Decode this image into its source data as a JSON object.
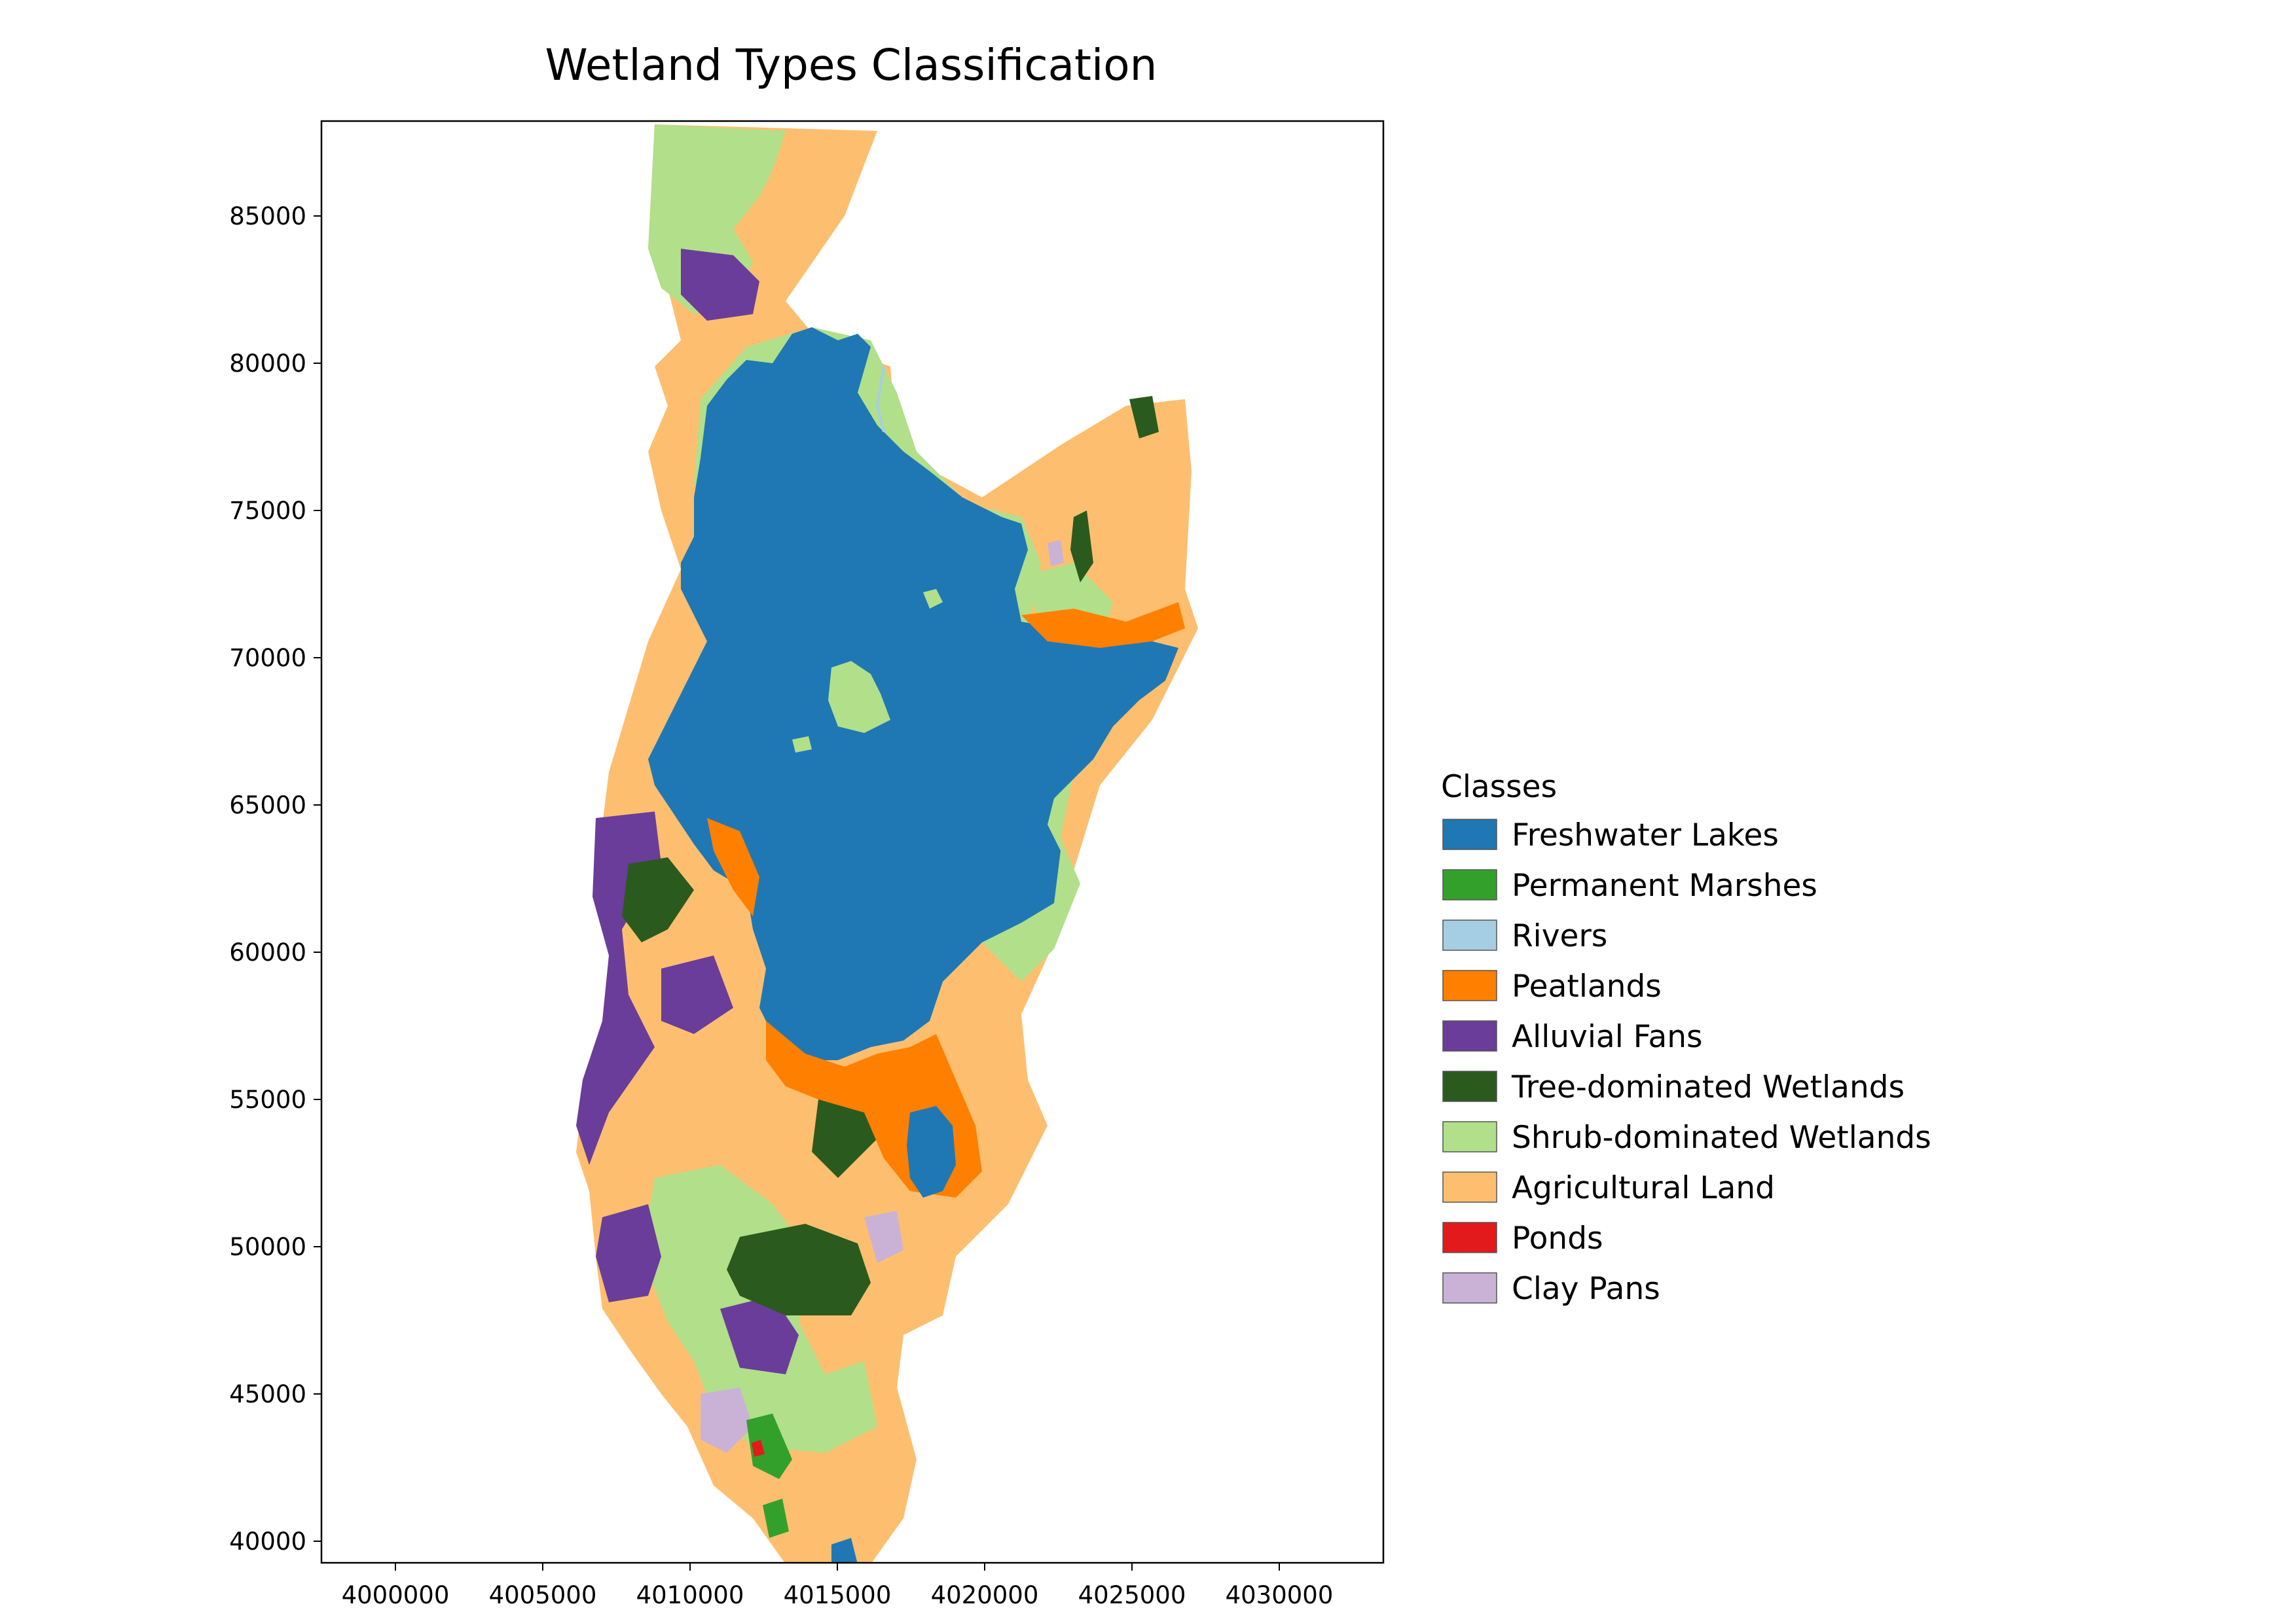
{
  "map": {
    "title": "Wetland Types Classification",
    "x_ticks": [
      "4000000",
      "4005000",
      "4010000",
      "4015000",
      "4020000",
      "4025000",
      "4030000"
    ],
    "y_ticks": [
      "85000",
      "80000",
      "75000",
      "70000",
      "65000",
      "60000",
      "55000",
      "50000",
      "45000",
      "40000"
    ]
  },
  "chart_data": {
    "type": "heatmap",
    "title": "Wetland Types Classification",
    "xlim": [
      3997500,
      4033500
    ],
    "ylim": [
      39300,
      88300
    ],
    "x_ticks": [
      4000000,
      4005000,
      4010000,
      4015000,
      4020000,
      4025000,
      4030000
    ],
    "y_ticks": [
      85000,
      80000,
      75000,
      70000,
      65000,
      60000,
      55000,
      50000,
      45000,
      40000
    ],
    "legend_placement": "right",
    "grid": false
  },
  "legend": {
    "title": "Classes",
    "items": [
      {
        "label": "Freshwater Lakes",
        "color": "#1f78b4"
      },
      {
        "label": "Permanent Marshes",
        "color": "#33a02c"
      },
      {
        "label": "Rivers",
        "color": "#a6cee3"
      },
      {
        "label": "Peatlands",
        "color": "#ff7f00"
      },
      {
        "label": "Alluvial Fans",
        "color": "#6a3d9a"
      },
      {
        "label": "Tree-dominated Wetlands",
        "color": "#2b5a1e"
      },
      {
        "label": "Shrub-dominated Wetlands",
        "color": "#b2df8a"
      },
      {
        "label": "Agricultural Land",
        "color": "#fdbf6f"
      },
      {
        "label": "Ponds",
        "color": "#e31a1c"
      },
      {
        "label": "Clay Pans",
        "color": "#cab2d6"
      }
    ]
  }
}
